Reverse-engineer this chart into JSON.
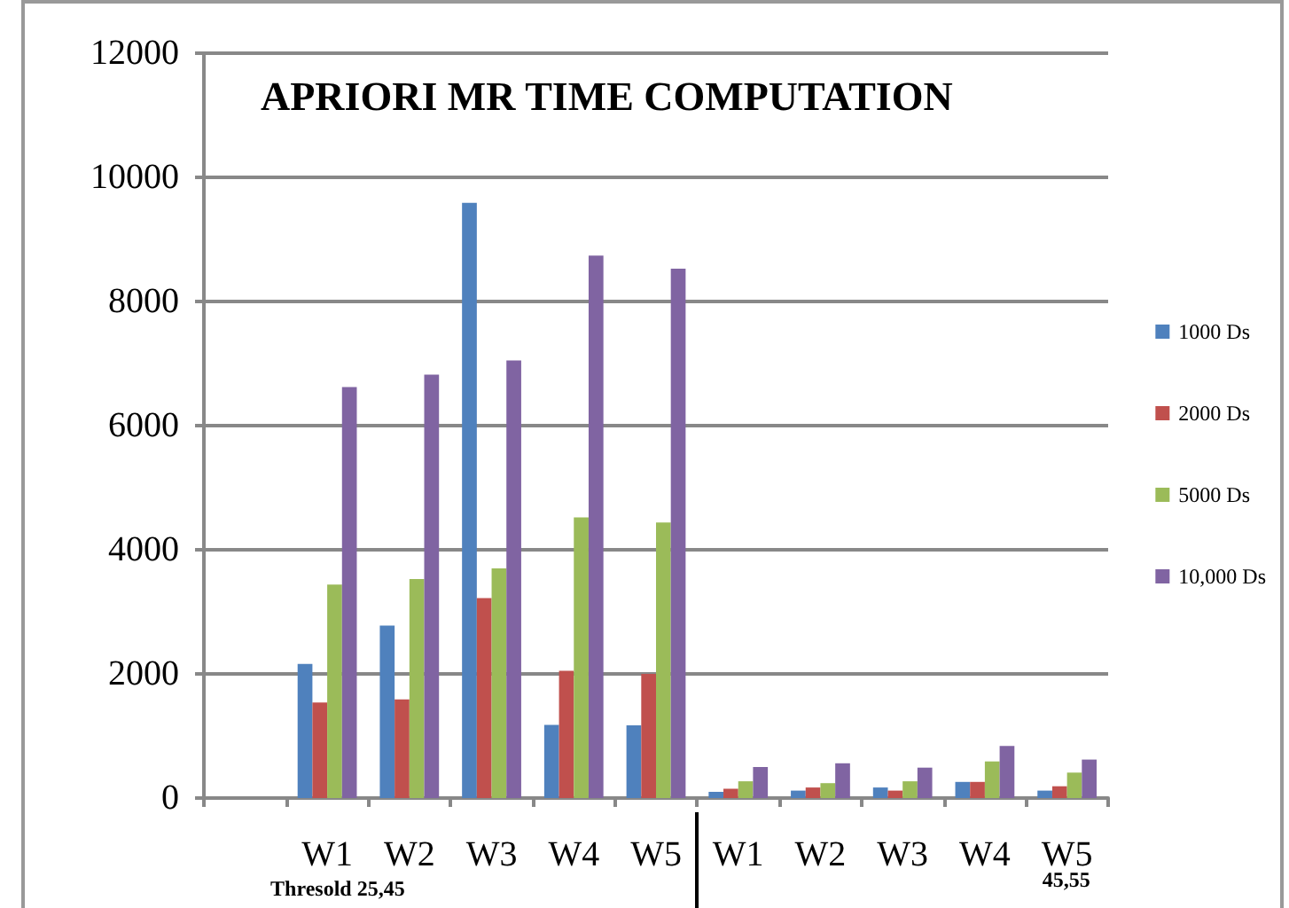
{
  "chart_data": {
    "type": "bar",
    "title": "APRIORI MR TIME COMPUTATION",
    "categories": [
      null,
      "W1",
      "W2",
      "W3",
      "W4",
      "W5",
      "W1",
      "W2",
      "W3",
      "W4",
      "W5"
    ],
    "series": [
      {
        "name": "1000 Ds",
        "color": "#4f81bd",
        "values": [
          null,
          2160,
          2780,
          9590,
          1180,
          1170,
          100,
          120,
          170,
          260,
          120
        ]
      },
      {
        "name": "2000 Ds",
        "color": "#c0504d",
        "values": [
          null,
          1540,
          1590,
          3220,
          2050,
          2000,
          150,
          170,
          120,
          260,
          190
        ]
      },
      {
        "name": "5000 Ds",
        "color": "#9bbb59",
        "values": [
          null,
          3440,
          3530,
          3700,
          4520,
          4440,
          270,
          240,
          270,
          590,
          410
        ]
      },
      {
        "name": "10,000 Ds",
        "color": "#8064a2",
        "values": [
          null,
          6620,
          6820,
          7050,
          8740,
          8530,
          500,
          560,
          490,
          840,
          620
        ]
      }
    ],
    "ylim": [
      0,
      12000
    ],
    "yticks": [
      0,
      2000,
      4000,
      6000,
      8000,
      10000,
      12000
    ],
    "grid": "y",
    "legend": "right",
    "annotations": [
      "Thresold 25,45",
      "45,55"
    ]
  }
}
